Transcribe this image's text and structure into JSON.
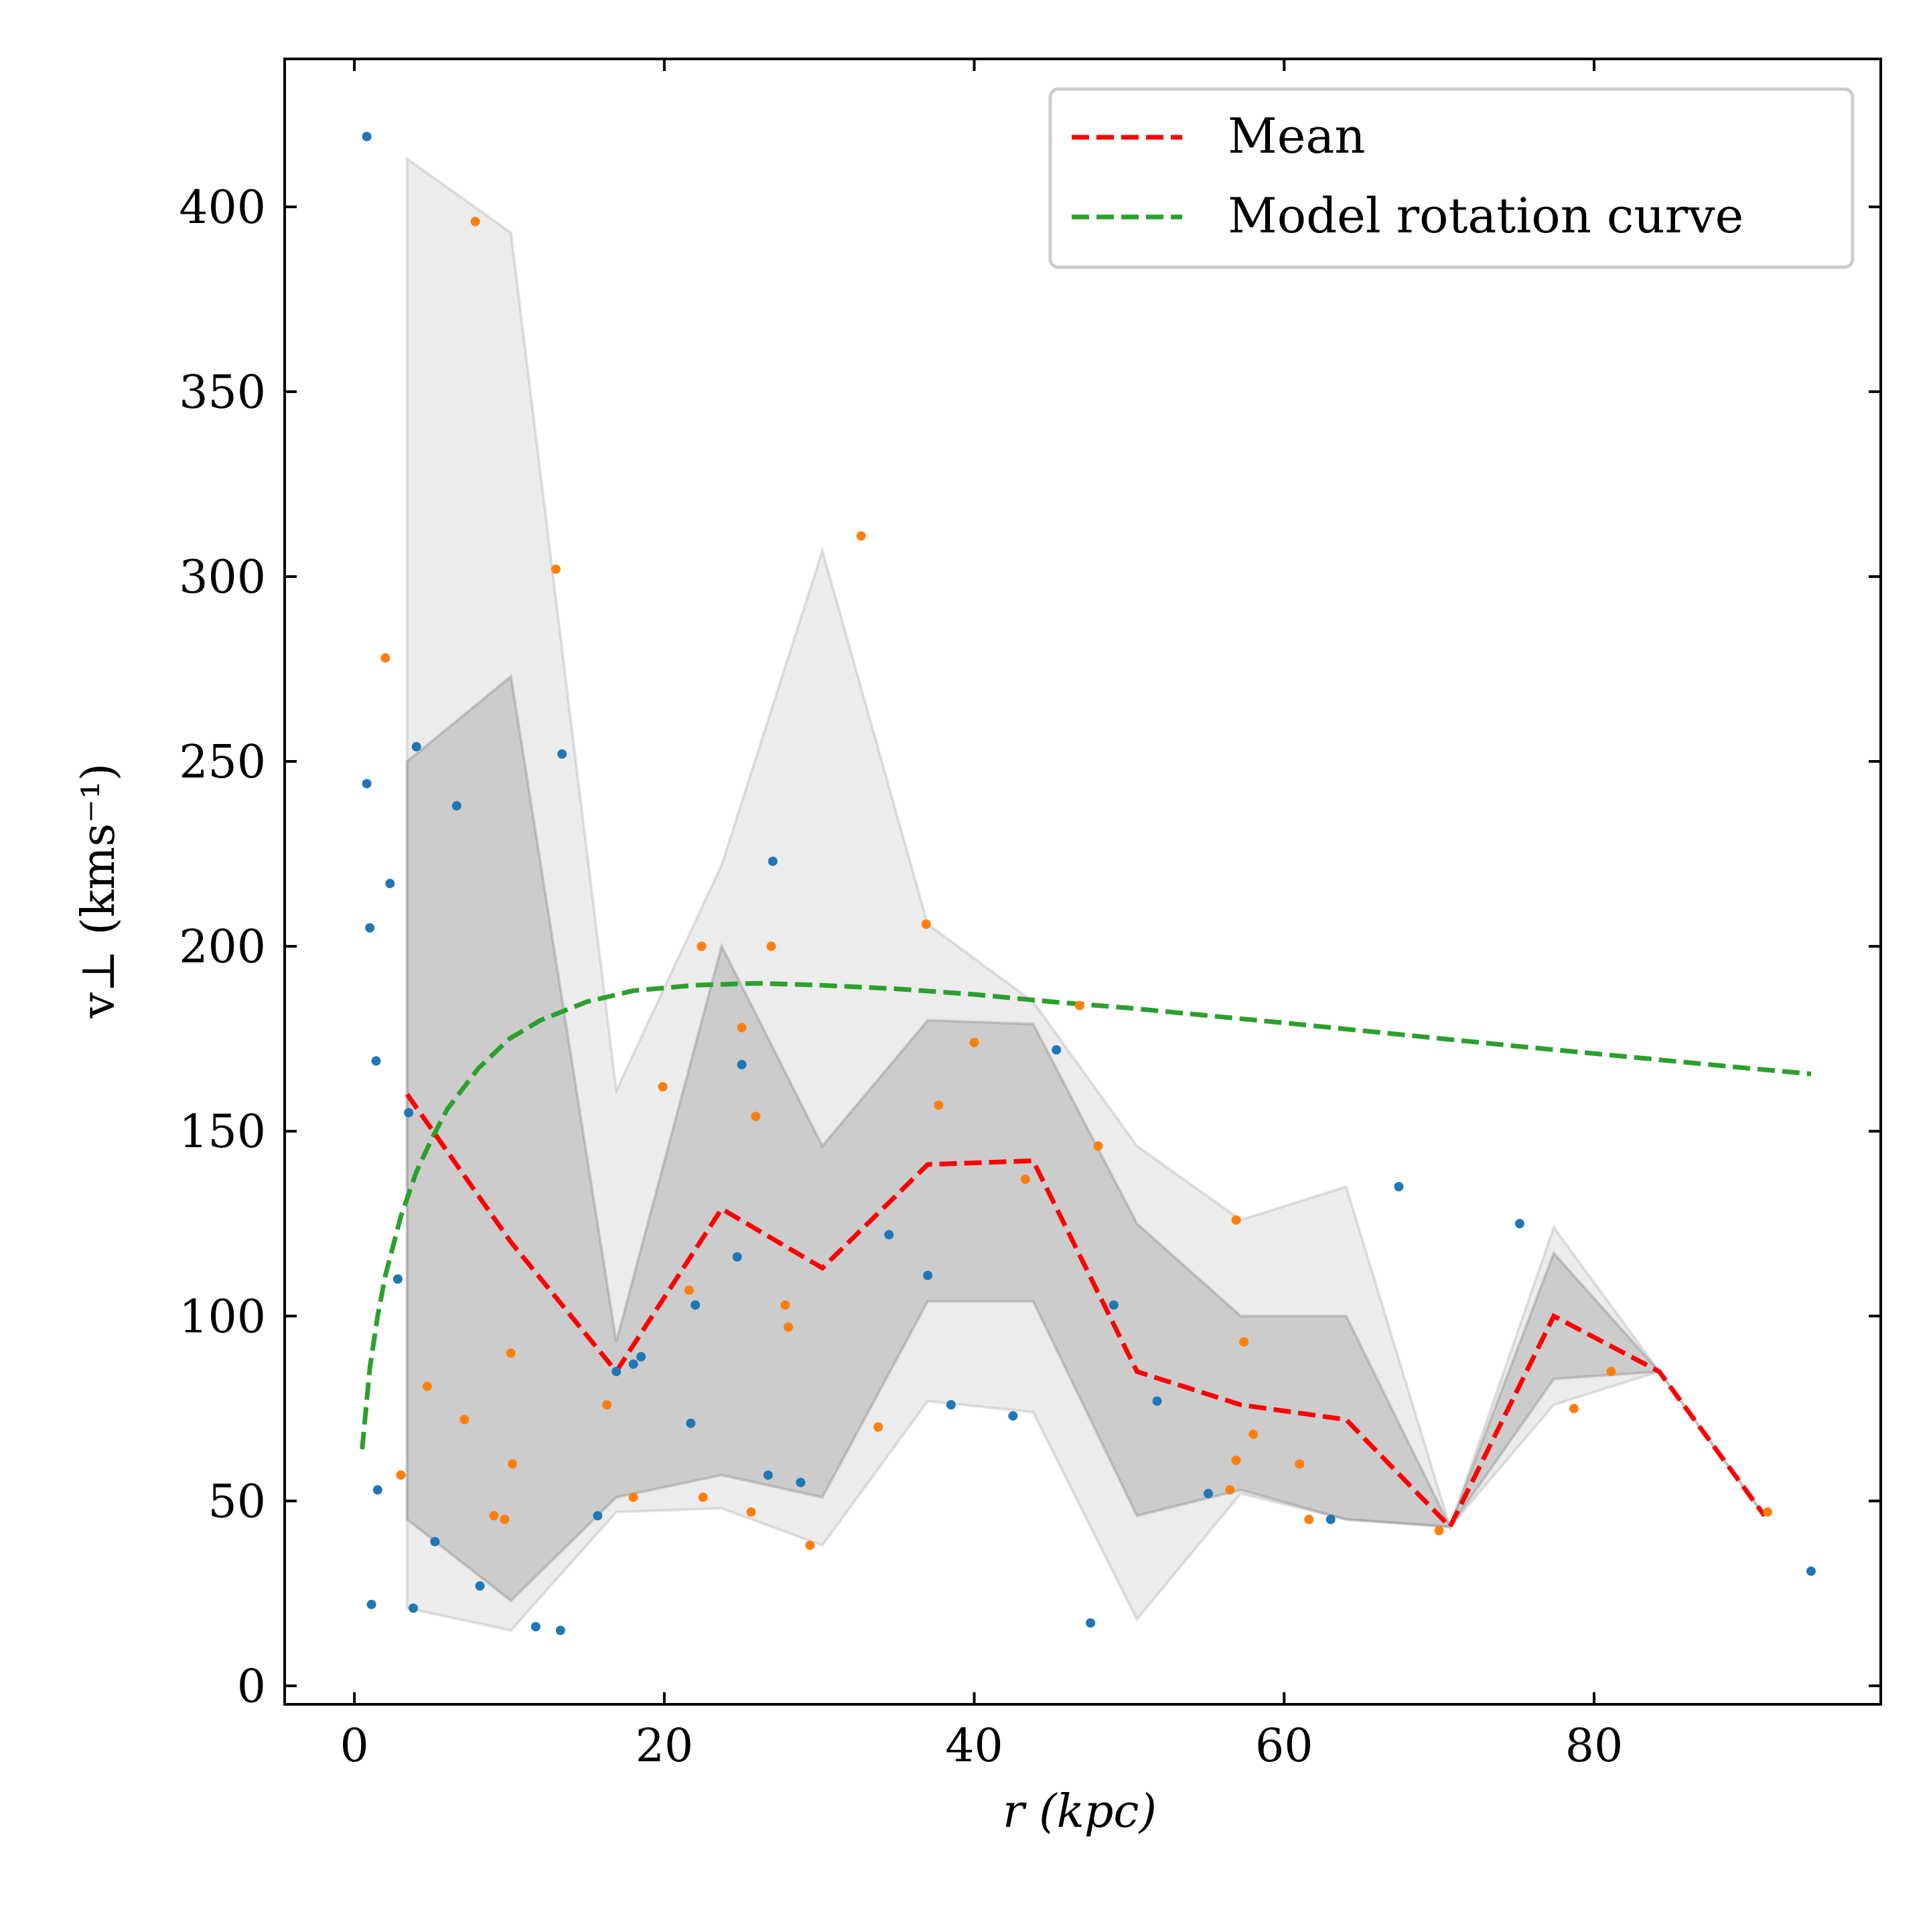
{
  "chart_data": {
    "type": "scatter",
    "xlabel": "r (kpc)",
    "ylabel": "v⊥ (kms⁻¹)",
    "xlim": [
      -4.5,
      98.5
    ],
    "ylim": [
      -5,
      440
    ],
    "xticks": [
      0,
      20,
      40,
      60,
      80
    ],
    "yticks": [
      0,
      50,
      100,
      150,
      200,
      250,
      300,
      350,
      400
    ],
    "xtick_labels": [
      "0",
      "20",
      "40",
      "60",
      "80"
    ],
    "ytick_labels": [
      "0",
      "50",
      "100",
      "150",
      "200",
      "250",
      "300",
      "350",
      "400"
    ],
    "legend": {
      "placement": "upper-right",
      "entries": [
        {
          "label": "Mean",
          "color": "#ff0000",
          "style": "dashed"
        },
        {
          "label": "Model rotation curve",
          "color": "#2ca02c",
          "style": "dashed"
        }
      ]
    },
    "grid": false,
    "bin_centers": [
      3.4,
      10.1,
      16.9,
      23.7,
      30.2,
      37.0,
      43.8,
      50.5,
      57.2,
      64.0,
      70.7,
      77.4,
      84.2,
      91.0
    ],
    "mean": [
      160,
      120,
      85,
      129,
      113,
      141,
      142,
      85,
      76,
      72,
      43,
      100,
      85,
      46
    ],
    "inner_band": {
      "upper": [
        250,
        273,
        93,
        200,
        146,
        180,
        179,
        125,
        100,
        100,
        43,
        117,
        85,
        46
      ],
      "lower": [
        45,
        23,
        51,
        57,
        51,
        104,
        104,
        46,
        53,
        45,
        43,
        83,
        85,
        46
      ]
    },
    "outer_band": {
      "upper": [
        413,
        393,
        161,
        222,
        307,
        206,
        185,
        146,
        126,
        135,
        43,
        124,
        85,
        46
      ],
      "lower": [
        21,
        15,
        47,
        48,
        38,
        77,
        74,
        18,
        52,
        45,
        43,
        76,
        85,
        46
      ]
    },
    "model_rotation_curve": {
      "x": [
        0.5,
        1,
        1.5,
        2,
        3,
        4,
        5,
        6,
        8,
        10,
        12,
        15,
        18,
        22,
        26,
        30,
        35,
        40,
        45,
        50,
        55,
        60,
        65,
        70,
        75,
        80,
        85,
        90,
        94
      ],
      "y": [
        64,
        86,
        100,
        111,
        127,
        139,
        148,
        156,
        167,
        175,
        180,
        185,
        188,
        189.5,
        190,
        189.5,
        188.5,
        187,
        185,
        183.3,
        181.3,
        179.3,
        177.2,
        175.1,
        173,
        171,
        169,
        167,
        165.5
      ]
    },
    "series": [
      {
        "color": "#1f77b4",
        "points": [
          [
            0.8,
            419
          ],
          [
            0.8,
            244
          ],
          [
            1.0,
            205
          ],
          [
            1.4,
            169
          ],
          [
            2.3,
            217
          ],
          [
            1.1,
            22
          ],
          [
            1.5,
            53
          ],
          [
            2.8,
            110
          ],
          [
            3.5,
            155
          ],
          [
            4.0,
            254
          ],
          [
            3.8,
            21
          ],
          [
            5.2,
            39
          ],
          [
            6.6,
            238
          ],
          [
            8.1,
            27
          ],
          [
            11.7,
            16
          ],
          [
            13.3,
            15
          ],
          [
            13.4,
            252
          ],
          [
            15.7,
            46
          ],
          [
            16.9,
            85
          ],
          [
            18.0,
            87
          ],
          [
            18.5,
            89
          ],
          [
            21.7,
            71
          ],
          [
            22.0,
            103
          ],
          [
            24.7,
            116
          ],
          [
            25.0,
            168
          ],
          [
            26.7,
            57
          ],
          [
            27.0,
            223
          ],
          [
            28.8,
            55
          ],
          [
            34.5,
            122
          ],
          [
            37.0,
            111
          ],
          [
            38.5,
            76
          ],
          [
            42.5,
            73
          ],
          [
            45.3,
            172
          ],
          [
            47.5,
            17
          ],
          [
            49.0,
            103
          ],
          [
            51.8,
            77
          ],
          [
            55.1,
            52
          ],
          [
            63.0,
            45
          ],
          [
            67.4,
            135
          ],
          [
            75.2,
            125
          ],
          [
            94.0,
            31
          ]
        ]
      },
      {
        "color": "#ff7f0e",
        "points": [
          [
            2.0,
            278
          ],
          [
            3.0,
            57
          ],
          [
            4.7,
            81
          ],
          [
            7.1,
            72
          ],
          [
            7.8,
            396
          ],
          [
            9.0,
            46
          ],
          [
            9.7,
            45
          ],
          [
            10.1,
            90
          ],
          [
            10.2,
            60
          ],
          [
            13.0,
            302
          ],
          [
            16.3,
            76
          ],
          [
            18.0,
            51
          ],
          [
            19.9,
            162
          ],
          [
            21.6,
            107
          ],
          [
            22.4,
            200
          ],
          [
            22.5,
            51
          ],
          [
            25.0,
            178
          ],
          [
            25.6,
            47
          ],
          [
            25.9,
            154
          ],
          [
            26.9,
            200
          ],
          [
            27.8,
            103
          ],
          [
            28.0,
            97
          ],
          [
            29.4,
            38
          ],
          [
            32.7,
            311
          ],
          [
            33.8,
            70
          ],
          [
            36.9,
            206
          ],
          [
            37.7,
            157
          ],
          [
            40.0,
            174
          ],
          [
            43.3,
            137
          ],
          [
            46.8,
            184
          ],
          [
            48.0,
            146
          ],
          [
            56.5,
            53
          ],
          [
            56.9,
            61
          ],
          [
            56.9,
            126
          ],
          [
            57.4,
            93
          ],
          [
            58.0,
            68
          ],
          [
            61.0,
            60
          ],
          [
            61.6,
            45
          ],
          [
            70.0,
            42
          ],
          [
            78.7,
            75
          ],
          [
            81.1,
            85
          ],
          [
            91.2,
            47
          ]
        ]
      }
    ]
  }
}
